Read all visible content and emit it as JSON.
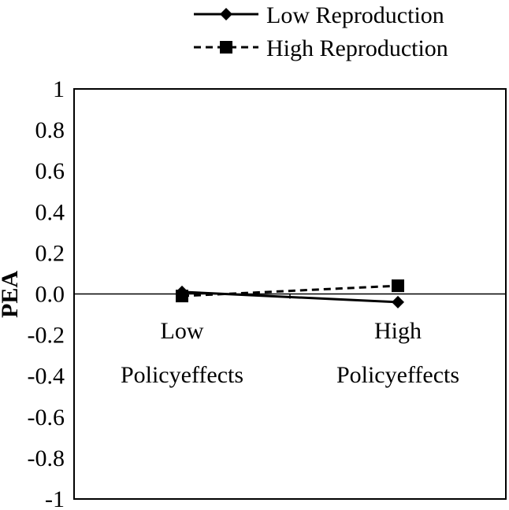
{
  "chart_data": {
    "type": "line",
    "title": "",
    "xlabel": "",
    "ylabel": "PEA",
    "categories": [
      [
        "Low",
        "Policyeffects"
      ],
      [
        "High",
        "Policyeffects"
      ]
    ],
    "ylim": [
      -1,
      1
    ],
    "yticks": [
      1,
      0.8,
      0.6,
      0.4,
      0.2,
      0.0,
      -0.2,
      -0.4,
      -0.6,
      -0.8,
      -1
    ],
    "ytick_labels": [
      "1",
      "0.8",
      "0.6",
      "0.4",
      "0.2",
      "0.0",
      "-0.2",
      "-0.4",
      "-0.6",
      "-0.8",
      "-1"
    ],
    "grid": false,
    "legend_position": "top-right",
    "series": [
      {
        "name": "Low Reproduction",
        "values": [
          0.01,
          -0.04
        ],
        "marker": "diamond",
        "line_style": "solid",
        "color": "#000000"
      },
      {
        "name": "High Reproduction",
        "values": [
          -0.01,
          0.04
        ],
        "marker": "square",
        "line_style": "dashed",
        "color": "#000000"
      }
    ]
  }
}
